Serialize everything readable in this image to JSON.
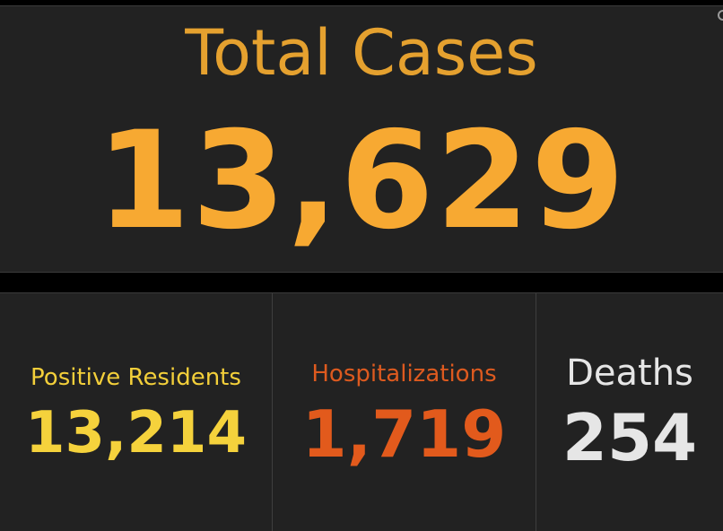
{
  "total": {
    "title": "Total Cases",
    "value": "13,629"
  },
  "stats": {
    "positive": {
      "label": "Positive Residents",
      "value": "13,214"
    },
    "hospitalizations": {
      "label": "Hospitalizations",
      "value": "1,719"
    },
    "deaths": {
      "label": "Deaths",
      "value": "254"
    }
  },
  "colors": {
    "background": "#000000",
    "panel": "#222222",
    "total_title": "#e5a12f",
    "total_value": "#f7a932",
    "positive": "#f5d23c",
    "hospitalizations": "#e25a1c",
    "deaths": "#e6e6e6"
  }
}
